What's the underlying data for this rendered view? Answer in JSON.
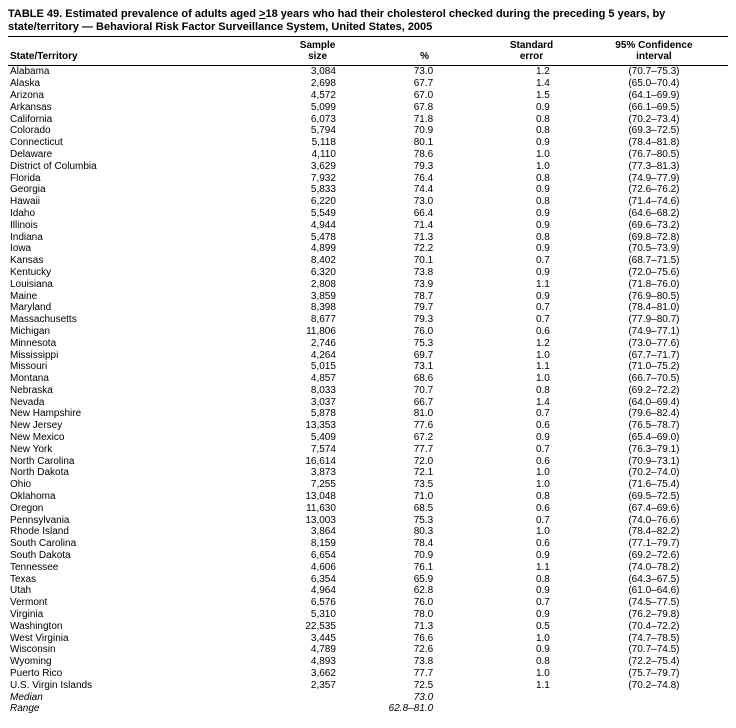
{
  "title_prefix": "TABLE 49. Estimated prevalence of adults aged ",
  "title_ge": ">",
  "title_suffix": "18 years who had their cholesterol checked during the preceding 5 years, by state/territory — Behavioral Risk Factor Surveillance System, United States, 2005",
  "columns": {
    "state": "State/Territory",
    "sample_l1": "Sample",
    "sample_l2": "size",
    "pct": "%",
    "se_l1": "Standard",
    "se_l2": "error",
    "ci_l1": "95% Confidence",
    "ci_l2": "interval"
  },
  "rows": [
    {
      "s": "Alabama",
      "n": "3,084",
      "p": "73.0",
      "e": "1.2",
      "c": "(70.7–75.3)"
    },
    {
      "s": "Alaska",
      "n": "2,698",
      "p": "67.7",
      "e": "1.4",
      "c": "(65.0–70.4)"
    },
    {
      "s": "Arizona",
      "n": "4,572",
      "p": "67.0",
      "e": "1.5",
      "c": "(64.1–69.9)"
    },
    {
      "s": "Arkansas",
      "n": "5,099",
      "p": "67.8",
      "e": "0.9",
      "c": "(66.1–69.5)"
    },
    {
      "s": "California",
      "n": "6,073",
      "p": "71.8",
      "e": "0.8",
      "c": "(70.2–73.4)"
    },
    {
      "s": "Colorado",
      "n": "5,794",
      "p": "70.9",
      "e": "0.8",
      "c": "(69.3–72.5)"
    },
    {
      "s": "Connecticut",
      "n": "5,118",
      "p": "80.1",
      "e": "0.9",
      "c": "(78.4–81.8)"
    },
    {
      "s": "Delaware",
      "n": "4,110",
      "p": "78.6",
      "e": "1.0",
      "c": "(76.7–80.5)"
    },
    {
      "s": "District of Columbia",
      "n": "3,629",
      "p": "79.3",
      "e": "1.0",
      "c": "(77.3–81.3)"
    },
    {
      "s": "Florida",
      "n": "7,932",
      "p": "76.4",
      "e": "0.8",
      "c": "(74.9–77.9)"
    },
    {
      "s": "Georgia",
      "n": "5,833",
      "p": "74.4",
      "e": "0.9",
      "c": "(72.6–76.2)"
    },
    {
      "s": "Hawaii",
      "n": "6,220",
      "p": "73.0",
      "e": "0.8",
      "c": "(71.4–74.6)"
    },
    {
      "s": "Idaho",
      "n": "5,549",
      "p": "66.4",
      "e": "0.9",
      "c": "(64.6–68.2)"
    },
    {
      "s": "Illinois",
      "n": "4,944",
      "p": "71.4",
      "e": "0.9",
      "c": "(69.6–73.2)"
    },
    {
      "s": "Indiana",
      "n": "5,478",
      "p": "71.3",
      "e": "0.8",
      "c": "(69.8–72.8)"
    },
    {
      "s": "Iowa",
      "n": "4,899",
      "p": "72.2",
      "e": "0.9",
      "c": "(70.5–73.9)"
    },
    {
      "s": "Kansas",
      "n": "8,402",
      "p": "70.1",
      "e": "0.7",
      "c": "(68.7–71.5)"
    },
    {
      "s": "Kentucky",
      "n": "6,320",
      "p": "73.8",
      "e": "0.9",
      "c": "(72.0–75.6)"
    },
    {
      "s": "Louisiana",
      "n": "2,808",
      "p": "73.9",
      "e": "1.1",
      "c": "(71.8–76.0)"
    },
    {
      "s": "Maine",
      "n": "3,859",
      "p": "78.7",
      "e": "0.9",
      "c": "(76.9–80.5)"
    },
    {
      "s": "Maryland",
      "n": "8,398",
      "p": "79.7",
      "e": "0.7",
      "c": "(78.4–81.0)"
    },
    {
      "s": "Massachusetts",
      "n": "8,677",
      "p": "79.3",
      "e": "0.7",
      "c": "(77.9–80.7)"
    },
    {
      "s": "Michigan",
      "n": "11,806",
      "p": "76.0",
      "e": "0.6",
      "c": "(74.9–77.1)"
    },
    {
      "s": "Minnesota",
      "n": "2,746",
      "p": "75.3",
      "e": "1.2",
      "c": "(73.0–77.6)"
    },
    {
      "s": "Mississippi",
      "n": "4,264",
      "p": "69.7",
      "e": "1.0",
      "c": "(67.7–71.7)"
    },
    {
      "s": "Missouri",
      "n": "5,015",
      "p": "73.1",
      "e": "1.1",
      "c": "(71.0–75.2)"
    },
    {
      "s": "Montana",
      "n": "4,857",
      "p": "68.6",
      "e": "1.0",
      "c": "(66.7–70.5)"
    },
    {
      "s": "Nebraska",
      "n": "8,033",
      "p": "70.7",
      "e": "0.8",
      "c": "(69.2–72.2)"
    },
    {
      "s": "Nevada",
      "n": "3,037",
      "p": "66.7",
      "e": "1.4",
      "c": "(64.0–69.4)"
    },
    {
      "s": "New Hampshire",
      "n": "5,878",
      "p": "81.0",
      "e": "0.7",
      "c": "(79.6–82.4)"
    },
    {
      "s": "New Jersey",
      "n": "13,353",
      "p": "77.6",
      "e": "0.6",
      "c": "(76.5–78.7)"
    },
    {
      "s": "New Mexico",
      "n": "5,409",
      "p": "67.2",
      "e": "0.9",
      "c": "(65.4–69.0)"
    },
    {
      "s": "New York",
      "n": "7,574",
      "p": "77.7",
      "e": "0.7",
      "c": "(76.3–79.1)"
    },
    {
      "s": "North Carolina",
      "n": "16,614",
      "p": "72.0",
      "e": "0.6",
      "c": "(70.9–73.1)"
    },
    {
      "s": "North Dakota",
      "n": "3,873",
      "p": "72.1",
      "e": "1.0",
      "c": "(70.2–74.0)"
    },
    {
      "s": "Ohio",
      "n": "7,255",
      "p": "73.5",
      "e": "1.0",
      "c": "(71.6–75.4)"
    },
    {
      "s": "Oklahoma",
      "n": "13,048",
      "p": "71.0",
      "e": "0.8",
      "c": "(69.5–72.5)"
    },
    {
      "s": "Oregon",
      "n": "11,630",
      "p": "68.5",
      "e": "0.6",
      "c": "(67.4–69.6)"
    },
    {
      "s": "Pennsylvania",
      "n": "13,003",
      "p": "75.3",
      "e": "0.7",
      "c": "(74.0–76.6)"
    },
    {
      "s": "Rhode Island",
      "n": "3,864",
      "p": "80.3",
      "e": "1.0",
      "c": "(78.4–82.2)"
    },
    {
      "s": "South Carolina",
      "n": "8,159",
      "p": "78.4",
      "e": "0.6",
      "c": "(77.1–79.7)"
    },
    {
      "s": "South Dakota",
      "n": "6,654",
      "p": "70.9",
      "e": "0.9",
      "c": "(69.2–72.6)"
    },
    {
      "s": "Tennessee",
      "n": "4,606",
      "p": "76.1",
      "e": "1.1",
      "c": "(74.0–78.2)"
    },
    {
      "s": "Texas",
      "n": "6,354",
      "p": "65.9",
      "e": "0.8",
      "c": "(64.3–67.5)"
    },
    {
      "s": "Utah",
      "n": "4,964",
      "p": "62.8",
      "e": "0.9",
      "c": "(61.0–64.6)"
    },
    {
      "s": "Vermont",
      "n": "6,576",
      "p": "76.0",
      "e": "0.7",
      "c": "(74.5–77.5)"
    },
    {
      "s": "Virginia",
      "n": "5,310",
      "p": "78.0",
      "e": "0.9",
      "c": "(76.2–79.8)"
    },
    {
      "s": "Washington",
      "n": "22,535",
      "p": "71.3",
      "e": "0.5",
      "c": "(70.4–72.2)"
    },
    {
      "s": "West Virginia",
      "n": "3,445",
      "p": "76.6",
      "e": "1.0",
      "c": "(74.7–78.5)"
    },
    {
      "s": "Wisconsin",
      "n": "4,789",
      "p": "72.6",
      "e": "0.9",
      "c": "(70.7–74.5)"
    },
    {
      "s": "Wyoming",
      "n": "4,893",
      "p": "73.8",
      "e": "0.8",
      "c": "(72.2–75.4)"
    },
    {
      "s": "Puerto Rico",
      "n": "3,662",
      "p": "77.7",
      "e": "1.0",
      "c": "(75.7–79.7)"
    },
    {
      "s": "U.S. Virgin Islands",
      "n": "2,357",
      "p": "72.5",
      "e": "1.1",
      "c": "(70.2–74.8)"
    }
  ],
  "median_label": "Median",
  "median_value": "73.0",
  "range_label": "Range",
  "range_value": "62.8–81.0"
}
